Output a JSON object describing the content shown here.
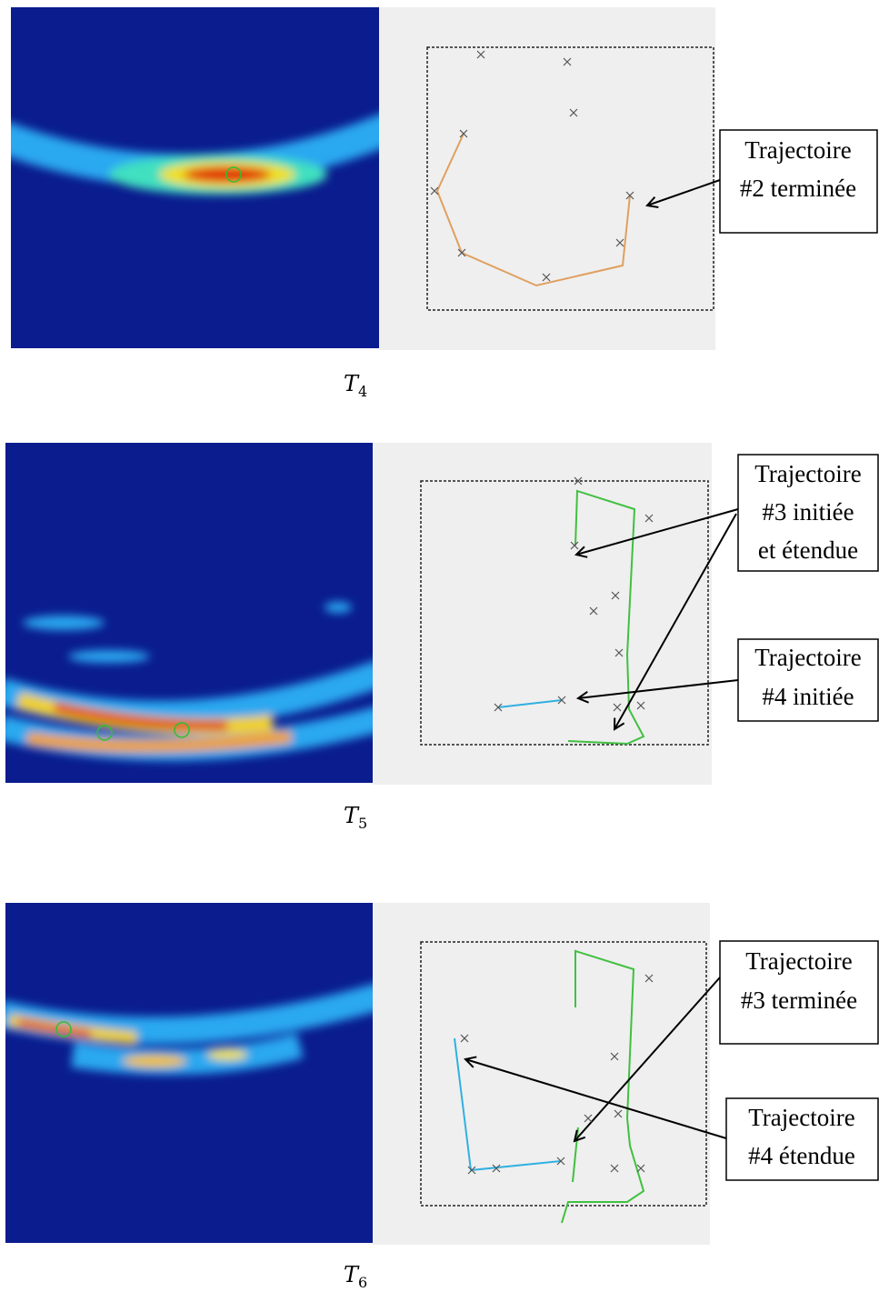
{
  "panels": [
    {
      "label": {
        "base": "T",
        "sub": "4"
      },
      "callouts": [
        {
          "lines": [
            "Trajectoire",
            "#2 terminée"
          ]
        }
      ]
    },
    {
      "label": {
        "base": "T",
        "sub": "5"
      },
      "callouts": [
        {
          "lines": [
            "Trajectoire",
            "#3 initiée",
            "et étendue"
          ]
        },
        {
          "lines": [
            "Trajectoire",
            "#4 initiée"
          ]
        }
      ]
    },
    {
      "label": {
        "base": "T",
        "sub": "6"
      },
      "callouts": [
        {
          "lines": [
            "Trajectoire",
            "#3 terminée"
          ]
        },
        {
          "lines": [
            "Trajectoire",
            "#4 étendue"
          ]
        }
      ]
    }
  ]
}
